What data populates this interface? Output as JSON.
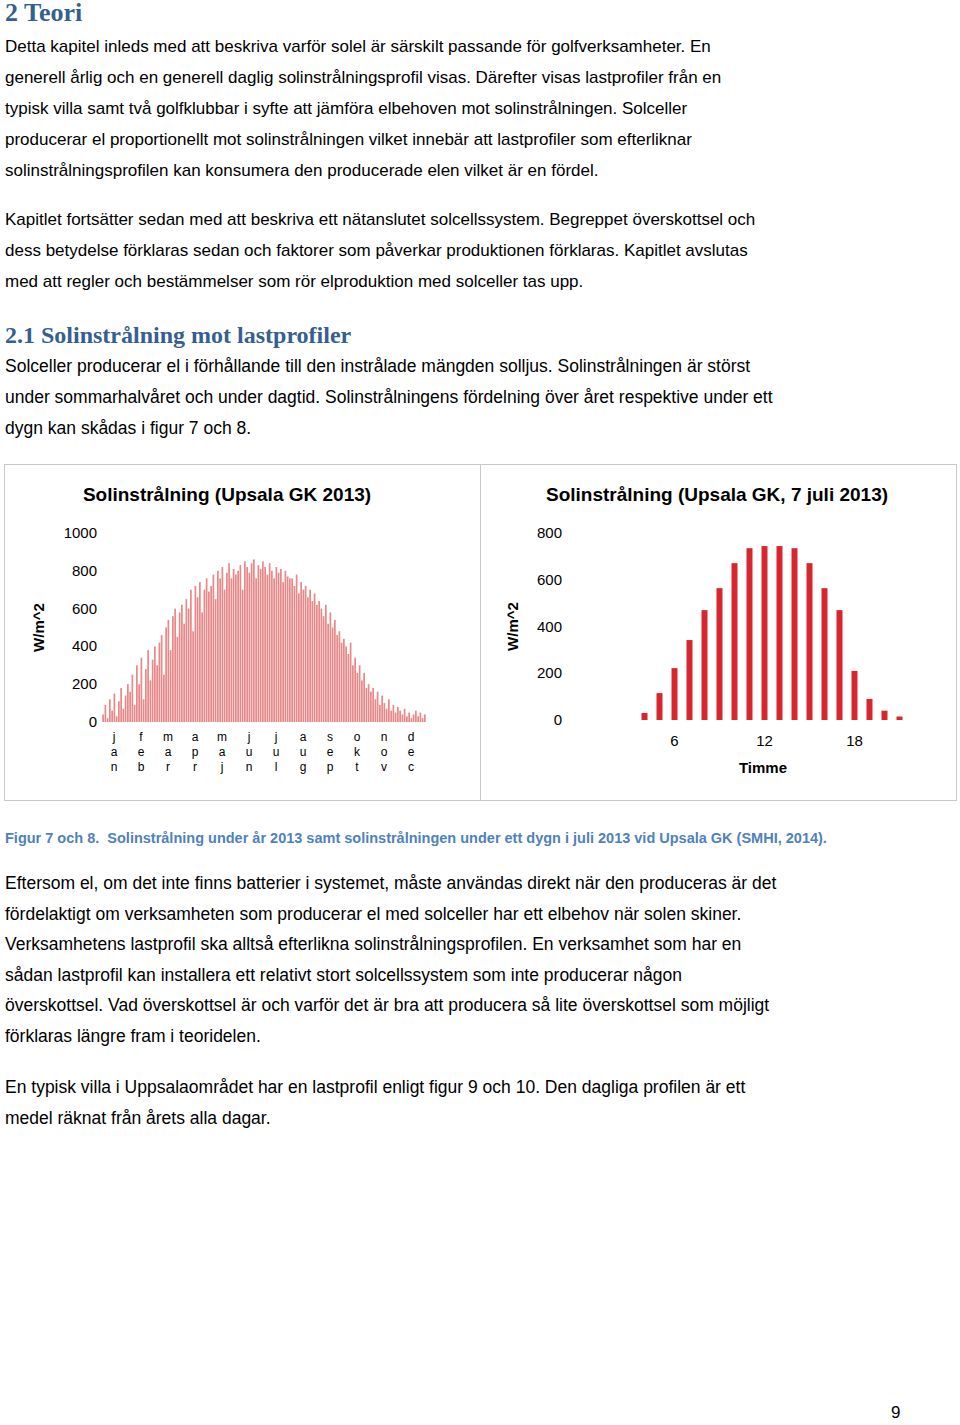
{
  "heading": "2 Teori",
  "intro": {
    "paragraphs": [
      [
        "Detta kapitel inleds med att beskriva varför solel är särskilt passande för golfverksamheter. En",
        "generell årlig och en generell daglig solinstrålningsprofil visas. Därefter visas lastprofiler från en",
        "typisk villa samt två golfklubbar i syfte att jämföra elbehoven mot solinstrålningen. Solceller",
        "producerar el proportionellt mot solinstrålningen vilket innebär att lastprofiler som efterliknar",
        "solinstrålningsprofilen kan konsumera den producerade elen vilket är en fördel."
      ],
      [
        "Kapitlet fortsätter sedan med att beskriva ett nätanslutet solcellssystem. Begreppet överskottsel och",
        "dess betydelse förklaras sedan och faktorer som påverkar produktionen förklaras. Kapitlet avslutas",
        "med att regler och bestämmelser som rör elproduktion med solceller tas upp."
      ]
    ]
  },
  "section": {
    "heading": "2.1 Solinstrålning mot lastprofiler",
    "paragraph": [
      "Solceller producerar el i förhållande till den instrålade mängden solljus. Solinstrålningen är störst",
      "under sommarhalvåret och under dagtid. Solinstrålningens fördelning över året respektive under ett",
      "dygn kan skådas i figur 7 och 8."
    ]
  },
  "chart_data": [
    {
      "type": "bar",
      "title": "Solinstrålning (Upsala GK 2013)",
      "y_label": "W/m^2",
      "categories": [
        "jan",
        null,
        null,
        null,
        null,
        null,
        null,
        null,
        null,
        null,
        null,
        null,
        "feb",
        null,
        null,
        null,
        null,
        null,
        null,
        null,
        null,
        null,
        null,
        null,
        "mar",
        null,
        null,
        null,
        null,
        null,
        null,
        null,
        null,
        null,
        null,
        null,
        "apr",
        null,
        null,
        null,
        null,
        null,
        null,
        null,
        null,
        null,
        null,
        null,
        "maj",
        null,
        null,
        null,
        null,
        null,
        null,
        null,
        null,
        null,
        null,
        null,
        "jun",
        null,
        null,
        null,
        null,
        null,
        null,
        null,
        null,
        null,
        null,
        null,
        "jul",
        null,
        null,
        null,
        null,
        null,
        null,
        null,
        null,
        null,
        null,
        null,
        "aug",
        null,
        null,
        null,
        null,
        null,
        null,
        null,
        null,
        null,
        null,
        null,
        "sep",
        null,
        null,
        null,
        null,
        null,
        null,
        null,
        null,
        null,
        null,
        null,
        "okt",
        null,
        null,
        null,
        null,
        null,
        null,
        null,
        null,
        null,
        null,
        null,
        "nov",
        null,
        null,
        null,
        null,
        null,
        null,
        null,
        null,
        null,
        null,
        null,
        "dec",
        null,
        null,
        null,
        null,
        null,
        null,
        null,
        null,
        null,
        null,
        null
      ],
      "values": [
        40,
        90,
        20,
        120,
        60,
        150,
        30,
        110,
        180,
        70,
        140,
        200,
        160,
        250,
        90,
        300,
        200,
        340,
        120,
        280,
        380,
        220,
        330,
        400,
        300,
        420,
        460,
        250,
        500,
        540,
        380,
        560,
        600,
        450,
        580,
        620,
        520,
        650,
        600,
        700,
        480,
        720,
        660,
        740,
        580,
        700,
        760,
        690,
        720,
        780,
        650,
        800,
        760,
        820,
        700,
        790,
        840,
        760,
        810,
        780,
        800,
        830,
        700,
        850,
        820,
        790,
        840,
        860,
        760,
        830,
        810,
        850,
        820,
        780,
        840,
        800,
        760,
        820,
        790,
        810,
        740,
        800,
        770,
        760,
        760,
        720,
        780,
        680,
        740,
        700,
        720,
        660,
        700,
        640,
        680,
        620,
        640,
        600,
        560,
        620,
        520,
        580,
        500,
        540,
        460,
        480,
        420,
        440,
        400,
        360,
        420,
        300,
        340,
        260,
        300,
        220,
        260,
        180,
        200,
        160,
        180,
        120,
        160,
        90,
        140,
        100,
        70,
        120,
        60,
        90,
        50,
        80,
        60,
        40,
        70,
        30,
        50,
        20,
        40,
        60,
        30,
        50,
        20,
        40
      ],
      "color": "#e06060",
      "ylim": [
        0,
        1000
      ],
      "yticks": [
        0,
        200,
        400,
        600,
        800,
        1000
      ],
      "grid": false
    },
    {
      "type": "bar",
      "title": "Solinstrålning (Upsala GK, 7 juli 2013)",
      "y_label": "W/m^2",
      "x_label": "Timme",
      "categories": [
        null,
        null,
        null,
        null,
        null,
        "6",
        null,
        null,
        null,
        null,
        null,
        "12",
        null,
        null,
        null,
        null,
        null,
        "18",
        null,
        null,
        null,
        null,
        null,
        null
      ],
      "values": [
        0,
        0,
        0,
        30,
        115,
        222,
        342,
        470,
        564,
        671,
        735,
        744,
        744,
        735,
        671,
        564,
        470,
        210,
        90,
        40,
        15,
        0,
        0,
        0
      ],
      "color": "#d7262e",
      "ylim": [
        0,
        800
      ],
      "yticks": [
        0,
        200,
        400,
        600,
        800
      ],
      "grid": false
    }
  ],
  "caption": {
    "label": "Figur 7 och 8.",
    "text": "Solinstrålning under år 2013 samt solinstrålningen under ett dygn i juli 2013 vid Upsala GK (SMHI, 2014)."
  },
  "body": {
    "paragraphs": [
      [
        "Eftersom el, om det inte finns batterier i systemet, måste användas direkt när den produceras är det",
        "fördelaktigt om verksamheten som producerar el med solceller har ett elbehov när solen skiner.",
        "Verksamhetens lastprofil ska alltså efterlikna solinstrålningsprofilen. En verksamhet som har en",
        "sådan lastprofil kan installera ett relativt stort solcellssystem som inte producerar någon",
        "överskottsel. Vad överskottsel är och varför det är bra att producera så lite överskottsel som möjligt",
        "förklaras längre fram i teoridelen."
      ],
      [
        "En typisk villa i Uppsalaområdet har en lastprofil enligt figur 9 och 10. Den dagliga profilen är ett",
        "medel räknat från årets alla dagar."
      ]
    ]
  },
  "page_number": 9
}
